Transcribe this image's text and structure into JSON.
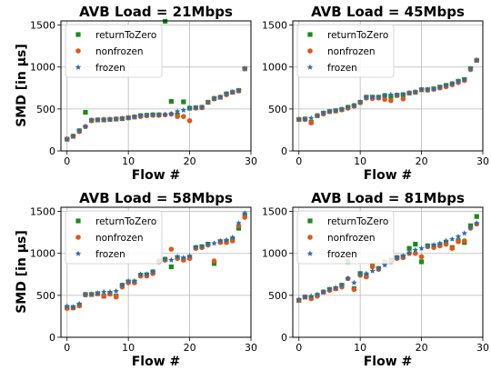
{
  "ylabel_shared": "SMD [in µs]",
  "legend_labels": [
    "returnToZero",
    "nonfrozen",
    "frozen"
  ],
  "colors": {
    "returnToZero": "#1a8a1a",
    "nonfrozen": "#e0561a",
    "frozen": "#2a6db0",
    "grid": "#b8b8b8"
  },
  "chart_data": [
    {
      "type": "scatter",
      "title": "AVB Load = 21Mbps",
      "xlabel": "Flow #",
      "ylabel": "SMD [in µs]",
      "xlim": [
        -1,
        30
      ],
      "ylim": [
        0,
        1550
      ],
      "xticks": [
        0,
        10,
        20,
        30
      ],
      "yticks": [
        0,
        500,
        1000,
        1500
      ],
      "grid": true,
      "legend": "top-left",
      "x": [
        0,
        1,
        2,
        3,
        4,
        5,
        6,
        7,
        8,
        9,
        10,
        11,
        12,
        13,
        14,
        15,
        16,
        17,
        18,
        19,
        20,
        21,
        22,
        23,
        24,
        25,
        26,
        27,
        28,
        29
      ],
      "series": [
        {
          "name": "returnToZero",
          "marker": "square",
          "values": [
            140,
            175,
            240,
            460,
            365,
            370,
            370,
            375,
            380,
            385,
            395,
            405,
            420,
            425,
            430,
            430,
            1545,
            590,
            430,
            585,
            510,
            515,
            520,
            580,
            625,
            640,
            680,
            700,
            720,
            980
          ]
        },
        {
          "name": "nonfrozen",
          "marker": "circle",
          "values": [
            140,
            175,
            230,
            290,
            360,
            370,
            375,
            375,
            380,
            385,
            395,
            405,
            410,
            420,
            425,
            425,
            430,
            440,
            410,
            410,
            360,
            510,
            515,
            580,
            620,
            640,
            670,
            700,
            715,
            980
          ]
        },
        {
          "name": "frozen",
          "marker": "star",
          "values": [
            140,
            175,
            240,
            290,
            365,
            370,
            370,
            375,
            380,
            385,
            395,
            405,
            420,
            425,
            430,
            430,
            435,
            440,
            470,
            485,
            510,
            515,
            520,
            580,
            625,
            640,
            680,
            700,
            720,
            980
          ]
        }
      ]
    },
    {
      "type": "scatter",
      "title": "AVB Load = 45Mbps",
      "xlabel": "Flow #",
      "ylabel": "",
      "xlim": [
        -1,
        30
      ],
      "ylim": [
        0,
        1550
      ],
      "xticks": [
        0,
        10,
        20,
        30
      ],
      "yticks": [
        0,
        500,
        1000,
        1500
      ],
      "grid": true,
      "legend": "top-left",
      "x": [
        0,
        1,
        2,
        3,
        4,
        5,
        6,
        7,
        8,
        9,
        10,
        11,
        12,
        13,
        14,
        15,
        16,
        17,
        18,
        19,
        20,
        21,
        22,
        23,
        24,
        25,
        26,
        27,
        28,
        29
      ],
      "series": [
        {
          "name": "returnToZero",
          "marker": "square",
          "values": [
            375,
            380,
            340,
            420,
            450,
            470,
            480,
            495,
            520,
            540,
            580,
            640,
            640,
            640,
            660,
            650,
            665,
            670,
            690,
            700,
            730,
            730,
            740,
            760,
            780,
            800,
            830,
            850,
            980,
            1080
          ]
        },
        {
          "name": "nonfrozen",
          "marker": "circle",
          "values": [
            375,
            375,
            335,
            420,
            440,
            470,
            475,
            490,
            510,
            535,
            575,
            630,
            625,
            630,
            615,
            600,
            660,
            620,
            690,
            700,
            730,
            725,
            735,
            750,
            765,
            790,
            815,
            840,
            970,
            1080
          ]
        },
        {
          "name": "frozen",
          "marker": "star",
          "values": [
            375,
            380,
            390,
            420,
            450,
            470,
            480,
            495,
            520,
            540,
            580,
            640,
            640,
            640,
            660,
            670,
            665,
            670,
            690,
            700,
            730,
            730,
            740,
            760,
            780,
            800,
            830,
            850,
            980,
            1080
          ]
        }
      ]
    },
    {
      "type": "scatter",
      "title": "AVB Load = 58Mbps",
      "xlabel": "Flow #",
      "ylabel": "SMD [in µs]",
      "xlim": [
        -1,
        30
      ],
      "ylim": [
        0,
        1550
      ],
      "xticks": [
        0,
        10,
        20,
        30
      ],
      "yticks": [
        0,
        500,
        1000,
        1500
      ],
      "grid": true,
      "legend": "top-left",
      "x": [
        0,
        1,
        2,
        3,
        4,
        5,
        6,
        7,
        8,
        9,
        10,
        11,
        12,
        13,
        14,
        15,
        16,
        17,
        18,
        19,
        20,
        21,
        22,
        23,
        24,
        25,
        26,
        27,
        28,
        29
      ],
      "series": [
        {
          "name": "returnToZero",
          "marker": "square",
          "values": [
            355,
            355,
            380,
            510,
            510,
            520,
            490,
            520,
            490,
            620,
            660,
            660,
            740,
            745,
            780,
            910,
            930,
            840,
            950,
            930,
            950,
            1070,
            1080,
            1110,
            880,
            1140,
            1140,
            1160,
            1300,
            1450
          ]
        },
        {
          "name": "nonfrozen",
          "marker": "circle",
          "values": [
            345,
            350,
            375,
            505,
            510,
            520,
            490,
            515,
            480,
            600,
            650,
            650,
            730,
            730,
            760,
            900,
            920,
            1050,
            940,
            920,
            940,
            1060,
            1070,
            1100,
            910,
            1130,
            1130,
            1150,
            1330,
            1430
          ]
        },
        {
          "name": "frozen",
          "marker": "star",
          "values": [
            370,
            360,
            400,
            510,
            515,
            525,
            540,
            540,
            550,
            620,
            670,
            670,
            750,
            750,
            780,
            900,
            930,
            920,
            960,
            950,
            970,
            1070,
            1080,
            1110,
            1120,
            1150,
            1160,
            1190,
            1360,
            1480
          ]
        }
      ]
    },
    {
      "type": "scatter",
      "title": "AVB Load = 81Mbps",
      "xlabel": "Flow #",
      "ylabel": "",
      "xlim": [
        -1,
        30
      ],
      "ylim": [
        0,
        1550
      ],
      "xticks": [
        0,
        10,
        20,
        30
      ],
      "yticks": [
        0,
        500,
        1000,
        1500
      ],
      "grid": true,
      "legend": "top-left",
      "x": [
        0,
        1,
        2,
        3,
        4,
        5,
        6,
        7,
        8,
        9,
        10,
        11,
        12,
        13,
        14,
        15,
        16,
        17,
        18,
        19,
        20,
        21,
        22,
        23,
        24,
        25,
        26,
        27,
        28,
        29
      ],
      "series": [
        {
          "name": "returnToZero",
          "marker": "square",
          "values": [
            440,
            480,
            470,
            500,
            540,
            570,
            580,
            620,
            900,
            580,
            760,
            730,
            860,
            820,
            900,
            920,
            950,
            960,
            1060,
            1110,
            900,
            1090,
            1090,
            1100,
            1130,
            1070,
            1150,
            1130,
            1330,
            1440
          ]
        },
        {
          "name": "nonfrozen",
          "marker": "circle",
          "values": [
            440,
            480,
            460,
            490,
            540,
            560,
            580,
            600,
            700,
            570,
            740,
            720,
            840,
            810,
            890,
            900,
            940,
            950,
            1000,
            1000,
            960,
            1080,
            1070,
            1090,
            1110,
            1060,
            1140,
            1150,
            1300,
            1350
          ]
        },
        {
          "name": "frozen",
          "marker": "star",
          "values": [
            450,
            480,
            490,
            510,
            540,
            570,
            590,
            620,
            700,
            650,
            750,
            760,
            790,
            820,
            860,
            900,
            950,
            970,
            1010,
            1040,
            1060,
            1090,
            1100,
            1120,
            1150,
            1170,
            1200,
            1240,
            1310,
            1360
          ]
        }
      ]
    }
  ]
}
